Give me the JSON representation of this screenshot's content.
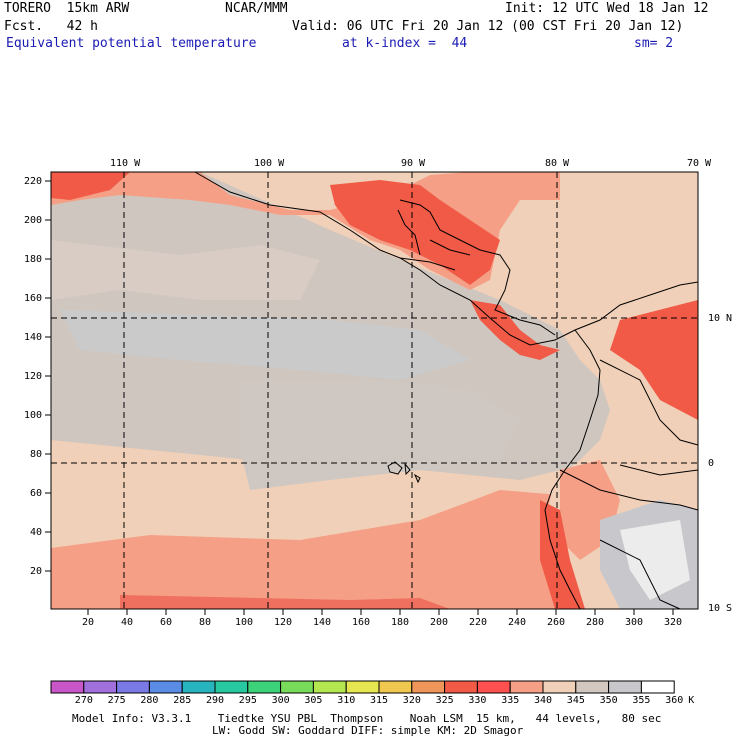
{
  "header": {
    "model": "TORERO  15km ARW",
    "org": "NCAR/MMM",
    "init": "Init: 12 UTC Wed 18 Jan 12",
    "fcst": "Fcst.   42 h",
    "valid": "Valid: 06 UTC Fri 20 Jan 12 (00 CST Fri 20 Jan 12)",
    "field": "Equivalent potential temperature",
    "level": "at k-index =  44",
    "smooth": "sm= 2"
  },
  "map": {
    "top_lon_labels": [
      "110 W",
      "100 W",
      "90 W",
      "80 W",
      "70 W"
    ],
    "right_lat_labels": [
      "10 N",
      "0",
      "10 S"
    ],
    "left_y_ticks": [
      "220",
      "200",
      "180",
      "160",
      "140",
      "120",
      "100",
      "80",
      "60",
      "40",
      "20"
    ],
    "bottom_x_ticks": [
      "20",
      "40",
      "60",
      "80",
      "100",
      "120",
      "140",
      "160",
      "180",
      "200",
      "220",
      "240",
      "260",
      "280",
      "300",
      "320"
    ]
  },
  "legend": {
    "values": [
      "270",
      "275",
      "280",
      "285",
      "290",
      "295",
      "300",
      "305",
      "310",
      "315",
      "320",
      "325",
      "330",
      "335",
      "340",
      "345",
      "350",
      "355",
      "360"
    ],
    "unit": "K",
    "colors": [
      "#c856c8",
      "#a070dc",
      "#7a7ae6",
      "#5a8ce6",
      "#28b4be",
      "#28c8a0",
      "#3cd27a",
      "#78dc5a",
      "#b4e650",
      "#e6e650",
      "#f0c850",
      "#f0965a",
      "#f05a46",
      "#ff5050",
      "#f5a086",
      "#f0d0b8",
      "#d2c8c0",
      "#c8c8cc",
      "#ffffff"
    ]
  },
  "footer": {
    "line1": "Model Info: V3.3.1    Tiedtke YSU PBL  Thompson    Noah LSM  15 km,   44 levels,   80 sec",
    "line2": "LW: Godd SW: Goddard DIFF: simple KM: 2D Smagor"
  }
}
